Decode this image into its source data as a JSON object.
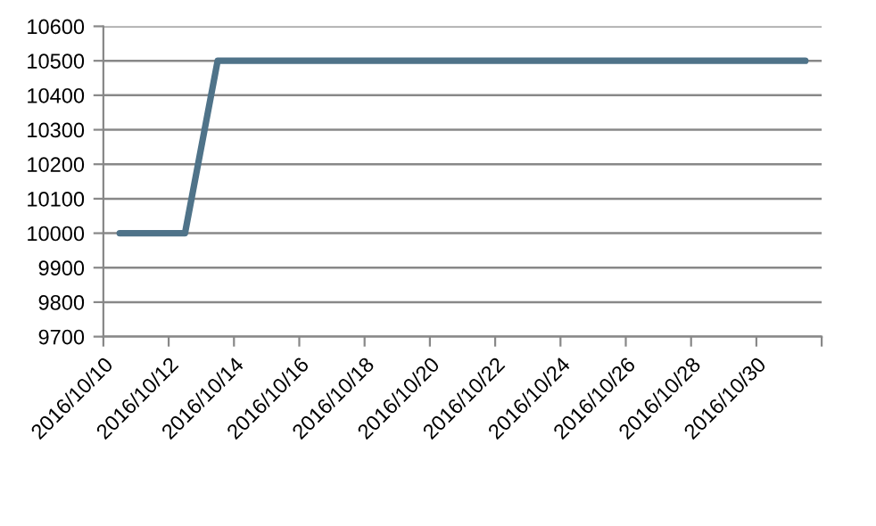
{
  "chart_data": {
    "type": "line",
    "x": [
      "2016-10-10T12:00",
      "2016-10-11T12:00",
      "2016-10-12T12:00",
      "2016-10-13T12:00",
      "2016-10-14T12:00",
      "2016-10-15T12:00",
      "2016-10-16T12:00",
      "2016-10-17T12:00",
      "2016-10-18T12:00",
      "2016-10-19T12:00",
      "2016-10-20T12:00",
      "2016-10-21T12:00",
      "2016-10-22T12:00",
      "2016-10-23T12:00",
      "2016-10-24T12:00",
      "2016-10-25T12:00",
      "2016-10-26T12:00",
      "2016-10-27T12:00",
      "2016-10-28T12:00",
      "2016-10-29T12:00",
      "2016-10-30T12:00",
      "2016-10-31T12:00"
    ],
    "series": [
      {
        "color": "#4f7389",
        "values": [
          10000,
          10000,
          10000,
          10500,
          10500,
          10500,
          10500,
          10500,
          10500,
          10500,
          10500,
          10500,
          10500,
          10500,
          10500,
          10500,
          10500,
          10500,
          10500,
          10500,
          10500,
          10500
        ]
      }
    ],
    "xlim": [
      "2016-10-10",
      "2016-11-01"
    ],
    "xticks": [
      {
        "value": "2016-10-10",
        "label": "2016/10/10"
      },
      {
        "value": "2016-10-12",
        "label": "2016/10/12"
      },
      {
        "value": "2016-10-14",
        "label": "2016/10/14"
      },
      {
        "value": "2016-10-16",
        "label": "2016/10/16"
      },
      {
        "value": "2016-10-18",
        "label": "2016/10/18"
      },
      {
        "value": "2016-10-20",
        "label": "2016/10/20"
      },
      {
        "value": "2016-10-22",
        "label": "2016/10/22"
      },
      {
        "value": "2016-10-24",
        "label": "2016/10/24"
      },
      {
        "value": "2016-10-26",
        "label": "2016/10/26"
      },
      {
        "value": "2016-10-28",
        "label": "2016/10/28"
      },
      {
        "value": "2016-10-30",
        "label": "2016/10/30"
      },
      {
        "value": "2016-11-01",
        "label": null
      }
    ],
    "ylim": [
      9700,
      10600
    ],
    "yticks": [
      9700,
      9800,
      9900,
      10000,
      10100,
      10200,
      10300,
      10400,
      10500,
      10600
    ],
    "grid": "y",
    "marker": "none",
    "line_style": "solid",
    "legend": false
  }
}
